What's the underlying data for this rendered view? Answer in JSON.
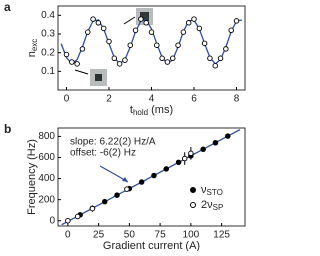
{
  "chart_data": [
    {
      "type": "line",
      "panel": "a",
      "xlabel": [
        "t",
        "hold",
        " (ms)"
      ],
      "ylabel": [
        "n",
        "exc"
      ],
      "xlim": [
        -0.4,
        8.4
      ],
      "ylim": [
        0.0,
        0.45
      ],
      "xticks": [
        0,
        2,
        4,
        6,
        8
      ],
      "yticks": [
        0.1,
        0.2,
        0.3,
        0.4
      ],
      "series": [
        {
          "kind": "line",
          "color": "#2b4ea2",
          "x": [
            -0.25,
            0,
            0.25,
            0.5,
            0.75,
            1,
            1.25,
            1.5,
            1.75,
            2,
            2.25,
            2.5,
            2.75,
            3,
            3.25,
            3.5,
            3.75,
            4,
            4.25,
            4.5,
            4.75,
            5,
            5.25,
            5.5,
            5.75,
            6,
            6.25,
            6.5,
            6.75,
            7,
            7.25,
            7.5,
            7.75,
            8,
            8.25
          ],
          "values": [
            0.248,
            0.174,
            0.14,
            0.163,
            0.231,
            0.313,
            0.37,
            0.375,
            0.327,
            0.248,
            0.174,
            0.14,
            0.163,
            0.231,
            0.313,
            0.37,
            0.375,
            0.327,
            0.248,
            0.174,
            0.14,
            0.163,
            0.231,
            0.313,
            0.37,
            0.375,
            0.327,
            0.248,
            0.174,
            0.14,
            0.163,
            0.231,
            0.313,
            0.37,
            0.375
          ]
        },
        {
          "kind": "markers",
          "marker": "open",
          "color": "#000000",
          "x": [
            0,
            0.25,
            0.5,
            0.75,
            1,
            1.25,
            1.5,
            1.75,
            2,
            2.25,
            2.5,
            2.75,
            3,
            3.25,
            3.5,
            3.75,
            4,
            4.25,
            4.5,
            4.75,
            5,
            5.25,
            5.5,
            5.75,
            6,
            6.25,
            6.5,
            6.75,
            7,
            7.25,
            7.5,
            7.75,
            8
          ],
          "values": [
            0.19,
            0.15,
            0.14,
            0.22,
            0.31,
            0.38,
            0.36,
            0.33,
            0.26,
            0.17,
            0.14,
            0.16,
            0.24,
            0.32,
            0.38,
            0.36,
            0.31,
            0.24,
            0.17,
            0.15,
            0.17,
            0.24,
            0.31,
            0.36,
            0.38,
            0.33,
            0.25,
            0.17,
            0.13,
            0.17,
            0.22,
            0.32,
            0.37
          ]
        }
      ]
    },
    {
      "type": "scatter",
      "panel": "b",
      "xlabel": [
        "Gradient current (A)"
      ],
      "ylabel": [
        "Frequency (Hz)"
      ],
      "xlim": [
        -8,
        144
      ],
      "ylim": [
        -50,
        880
      ],
      "xticks": [
        0,
        25,
        50,
        75,
        100,
        125
      ],
      "yticks": [
        0,
        200,
        400,
        600,
        800
      ],
      "annotations": [
        "slope: 6.22(2) Hz/A",
        "offset: -6(2) Hz"
      ],
      "series": [
        {
          "kind": "line",
          "color": "#2b4ea2",
          "x": [
            -5,
            140
          ],
          "values": [
            -37.1,
            864.8
          ]
        },
        {
          "kind": "markers",
          "marker": "filled",
          "color": "#000000",
          "name": [
            "ν",
            "STO"
          ],
          "x": [
            10,
            20,
            30,
            40,
            50,
            60,
            70,
            80,
            90,
            100,
            110,
            120,
            130
          ],
          "values": [
            56,
            118,
            181,
            243,
            305,
            367,
            429,
            492,
            554,
            616,
            678,
            740,
            803
          ]
        },
        {
          "kind": "markers",
          "marker": "open",
          "color": "#000000",
          "name": [
            "2ν",
            "SP"
          ],
          "x": [
            0,
            8,
            20,
            48,
            95,
            100
          ],
          "values": [
            0,
            40,
            115,
            300,
            590,
            640
          ],
          "errors": [
            0,
            0,
            30,
            0,
            60,
            60
          ]
        }
      ]
    }
  ]
}
